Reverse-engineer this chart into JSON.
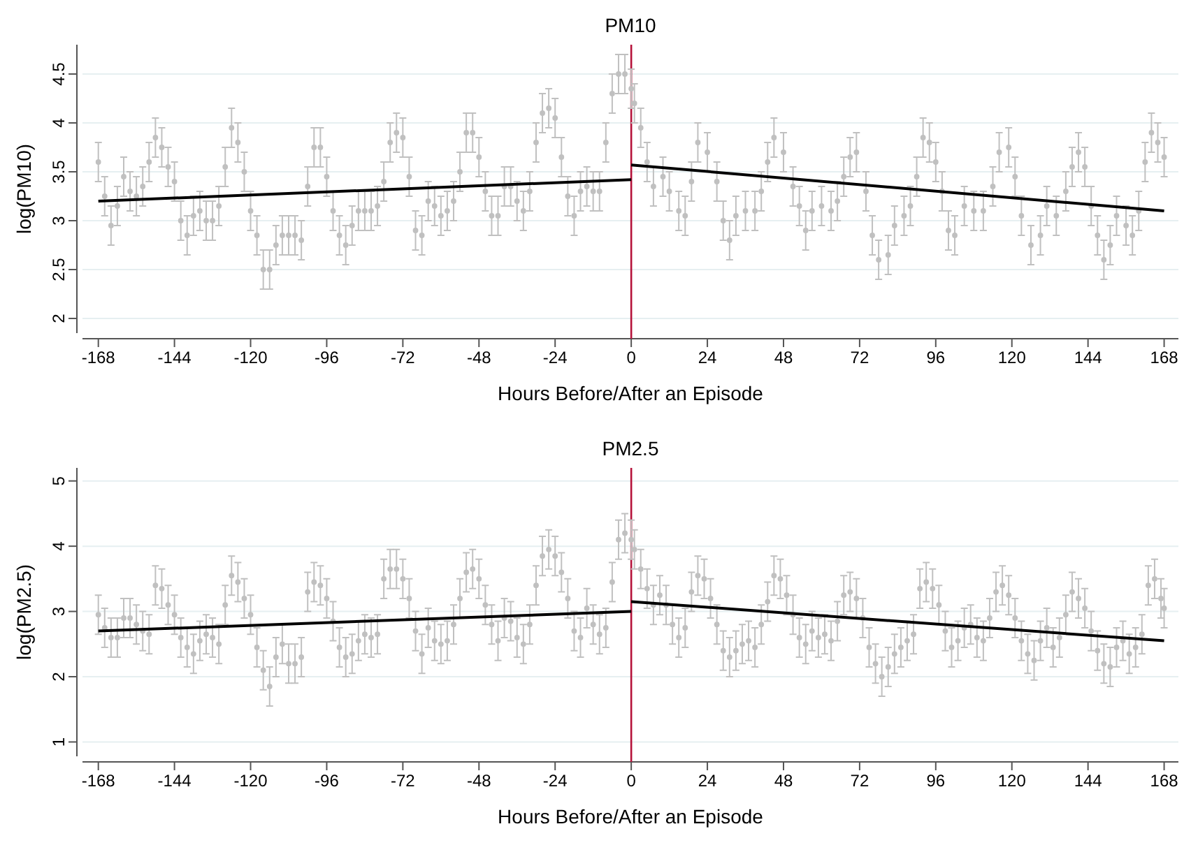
{
  "chart_data": [
    {
      "type": "scatter",
      "title": "PM10",
      "xlabel": "Hours Before/After an Episode",
      "ylabel": "log(PM10)",
      "xlim": [
        -173,
        172.5
      ],
      "xticks": [
        -168,
        -144,
        -120,
        -96,
        -72,
        -48,
        -24,
        0,
        24,
        48,
        72,
        96,
        120,
        144,
        168
      ],
      "ylim": [
        1.85,
        4.8
      ],
      "yticks": [
        2,
        2.5,
        3,
        3.5,
        4,
        4.5
      ],
      "grid": "y",
      "ref_lines": [
        {
          "axis": "x",
          "value": 0,
          "color": "#b5123a"
        }
      ],
      "series": [
        {
          "marker": "circle",
          "color": "#c0c0c0",
          "x": [
            -168,
            -166,
            -164,
            -162,
            -160,
            -158,
            -156,
            -154,
            -152,
            -150,
            -148,
            -146,
            -144,
            -142,
            -140,
            -138,
            -136,
            -134,
            -132,
            -130,
            -128,
            -126,
            -124,
            -122,
            -120,
            -118,
            -116,
            -114,
            -112,
            -110,
            -108,
            -106,
            -104,
            -102,
            -100,
            -98,
            -96,
            -94,
            -92,
            -90,
            -88,
            -86,
            -84,
            -82,
            -80,
            -78,
            -76,
            -74,
            -72,
            -70,
            -68,
            -66,
            -64,
            -62,
            -60,
            -58,
            -56,
            -54,
            -52,
            -50,
            -48,
            -46,
            -44,
            -42,
            -40,
            -38,
            -36,
            -34,
            -32,
            -30,
            -28,
            -26,
            -24,
            -22,
            -20,
            -18,
            -16,
            -14,
            -12,
            -10,
            -8,
            -6,
            -4,
            -2,
            0,
            1,
            3,
            5,
            7,
            10,
            12,
            15,
            17,
            19,
            21,
            24,
            27,
            29,
            31,
            33,
            36,
            39,
            41,
            43,
            45,
            48,
            51,
            53,
            55,
            57,
            60,
            63,
            65,
            67,
            69,
            71,
            74,
            76,
            78,
            81,
            83,
            86,
            88,
            90,
            92,
            94,
            96,
            98,
            100,
            102,
            105,
            108,
            111,
            114,
            116,
            119,
            121,
            123,
            126,
            129,
            131,
            134,
            137,
            139,
            141,
            143,
            145,
            147,
            149,
            151,
            153,
            156,
            158,
            160,
            162,
            164,
            166,
            168
          ],
          "values": [
            3.6,
            3.25,
            2.95,
            3.15,
            3.45,
            3.3,
            3.25,
            3.35,
            3.6,
            3.85,
            3.75,
            3.55,
            3.4,
            3.0,
            2.85,
            3.05,
            3.1,
            3.0,
            3.0,
            3.15,
            3.55,
            3.95,
            3.8,
            3.5,
            3.1,
            2.85,
            2.5,
            2.5,
            2.75,
            2.85,
            2.85,
            2.85,
            2.8,
            3.35,
            3.75,
            3.75,
            3.45,
            3.1,
            2.85,
            2.75,
            2.95,
            3.1,
            3.1,
            3.1,
            3.15,
            3.4,
            3.8,
            3.9,
            3.85,
            3.45,
            2.9,
            2.85,
            3.2,
            3.15,
            3.05,
            3.1,
            3.2,
            3.5,
            3.9,
            3.9,
            3.65,
            3.3,
            3.05,
            3.05,
            3.35,
            3.35,
            3.2,
            3.1,
            3.3,
            3.8,
            4.1,
            4.15,
            4.05,
            3.65,
            3.25,
            3.05,
            3.3,
            3.35,
            3.3,
            3.3,
            3.8,
            4.3,
            4.5,
            4.5,
            4.35,
            4.2,
            3.95,
            3.6,
            3.35,
            3.45,
            3.3,
            3.1,
            3.05,
            3.4,
            3.8,
            3.7,
            3.4,
            3.0,
            2.8,
            3.05,
            3.1,
            3.1,
            3.3,
            3.6,
            3.85,
            3.7,
            3.35,
            3.15,
            2.9,
            3.1,
            3.15,
            3.1,
            3.2,
            3.45,
            3.65,
            3.7,
            3.3,
            2.85,
            2.6,
            2.65,
            2.95,
            3.05,
            3.15,
            3.45,
            3.85,
            3.8,
            3.6,
            3.3,
            2.9,
            2.85,
            3.15,
            3.1,
            3.1,
            3.35,
            3.7,
            3.75,
            3.45,
            3.05,
            2.75,
            2.85,
            3.15,
            3.05,
            3.3,
            3.55,
            3.7,
            3.55,
            3.15,
            2.85,
            2.6,
            2.75,
            3.05,
            2.95,
            2.85,
            3.1,
            3.6,
            3.9,
            3.8,
            3.65
          ],
          "errors": [
            0.2,
            0.2,
            0.2,
            0.2,
            0.2,
            0.2,
            0.2,
            0.2,
            0.2,
            0.2,
            0.2,
            0.2,
            0.2,
            0.2,
            0.2,
            0.2,
            0.2,
            0.2,
            0.2,
            0.2,
            0.2,
            0.2,
            0.2,
            0.2,
            0.2,
            0.2,
            0.2,
            0.2,
            0.2,
            0.2,
            0.2,
            0.2,
            0.2,
            0.2,
            0.2,
            0.2,
            0.2,
            0.2,
            0.2,
            0.2,
            0.2,
            0.2,
            0.2,
            0.2,
            0.2,
            0.2,
            0.2,
            0.2,
            0.2,
            0.2,
            0.2,
            0.2,
            0.2,
            0.2,
            0.2,
            0.2,
            0.2,
            0.2,
            0.2,
            0.2,
            0.2,
            0.2,
            0.2,
            0.2,
            0.2,
            0.2,
            0.2,
            0.2,
            0.2,
            0.2,
            0.2,
            0.2,
            0.2,
            0.2,
            0.2,
            0.2,
            0.2,
            0.2,
            0.2,
            0.2,
            0.2,
            0.2,
            0.2,
            0.2,
            0.2,
            0.2,
            0.2,
            0.2,
            0.2,
            0.2,
            0.2,
            0.2,
            0.2,
            0.2,
            0.2,
            0.2,
            0.2,
            0.2,
            0.2,
            0.2,
            0.2,
            0.2,
            0.2,
            0.2,
            0.2,
            0.2,
            0.2,
            0.2,
            0.2,
            0.2,
            0.2,
            0.2,
            0.2,
            0.2,
            0.2,
            0.2,
            0.2,
            0.2,
            0.2,
            0.2,
            0.2,
            0.2,
            0.2,
            0.2,
            0.2,
            0.2,
            0.2,
            0.2,
            0.2,
            0.2,
            0.2,
            0.2,
            0.2,
            0.2,
            0.2,
            0.2,
            0.2,
            0.2,
            0.2,
            0.2,
            0.2,
            0.2,
            0.2,
            0.2,
            0.2,
            0.2,
            0.2,
            0.2,
            0.2,
            0.2,
            0.2,
            0.2,
            0.2,
            0.2,
            0.2,
            0.2,
            0.2,
            0.2
          ]
        },
        {
          "type": "line",
          "color": "#000000",
          "x": [
            -168,
            0
          ],
          "values": [
            3.2,
            3.42
          ]
        },
        {
          "type": "line",
          "color": "#000000",
          "x": [
            0,
            168
          ],
          "values": [
            3.57,
            3.1
          ]
        }
      ]
    },
    {
      "type": "scatter",
      "title": "PM2.5",
      "xlabel": "Hours Before/After an Episode",
      "ylabel": "log(PM2.5)",
      "xlim": [
        -173,
        172.5
      ],
      "xticks": [
        -168,
        -144,
        -120,
        -96,
        -72,
        -48,
        -24,
        0,
        24,
        48,
        72,
        96,
        120,
        144,
        168
      ],
      "ylim": [
        0.78,
        5.2
      ],
      "yticks": [
        1,
        2,
        3,
        4,
        5
      ],
      "grid": "y",
      "ref_lines": [
        {
          "axis": "x",
          "value": 0,
          "color": "#b5123a"
        }
      ],
      "series": [
        {
          "marker": "circle",
          "color": "#c0c0c0",
          "x": [
            -168,
            -166,
            -164,
            -162,
            -160,
            -158,
            -156,
            -154,
            -152,
            -150,
            -148,
            -146,
            -144,
            -142,
            -140,
            -138,
            -136,
            -134,
            -132,
            -130,
            -128,
            -126,
            -124,
            -122,
            -120,
            -118,
            -116,
            -114,
            -112,
            -110,
            -108,
            -106,
            -104,
            -102,
            -100,
            -98,
            -96,
            -94,
            -92,
            -90,
            -88,
            -86,
            -84,
            -82,
            -80,
            -78,
            -76,
            -74,
            -72,
            -70,
            -68,
            -66,
            -64,
            -62,
            -60,
            -58,
            -56,
            -54,
            -52,
            -50,
            -48,
            -46,
            -44,
            -42,
            -40,
            -38,
            -36,
            -34,
            -32,
            -30,
            -28,
            -26,
            -24,
            -22,
            -20,
            -18,
            -16,
            -14,
            -12,
            -10,
            -8,
            -6,
            -4,
            -2,
            0,
            1,
            3,
            5,
            7,
            9,
            11,
            13,
            15,
            17,
            19,
            21,
            23,
            25,
            27,
            29,
            31,
            33,
            35,
            37,
            39,
            41,
            43,
            45,
            47,
            49,
            51,
            53,
            55,
            57,
            59,
            61,
            63,
            65,
            67,
            69,
            71,
            73,
            75,
            77,
            79,
            81,
            83,
            85,
            87,
            89,
            91,
            93,
            95,
            97,
            99,
            101,
            103,
            105,
            107,
            109,
            111,
            113,
            115,
            117,
            119,
            121,
            123,
            125,
            127,
            129,
            131,
            133,
            135,
            137,
            139,
            141,
            143,
            145,
            147,
            149,
            151,
            153,
            155,
            157,
            159,
            161,
            163,
            165,
            167,
            168
          ],
          "values": [
            2.95,
            2.75,
            2.6,
            2.6,
            2.9,
            2.9,
            2.8,
            2.7,
            2.65,
            3.4,
            3.35,
            3.1,
            2.95,
            2.6,
            2.45,
            2.35,
            2.55,
            2.65,
            2.6,
            2.5,
            3.1,
            3.55,
            3.45,
            3.2,
            2.95,
            2.45,
            2.1,
            1.85,
            2.3,
            2.5,
            2.2,
            2.2,
            2.3,
            3.3,
            3.45,
            3.4,
            3.2,
            2.85,
            2.45,
            2.3,
            2.35,
            2.55,
            2.65,
            2.6,
            2.65,
            3.5,
            3.65,
            3.65,
            3.5,
            3.2,
            2.7,
            2.35,
            2.75,
            2.55,
            2.5,
            2.55,
            2.8,
            3.2,
            3.6,
            3.65,
            3.5,
            3.1,
            2.8,
            2.55,
            2.9,
            2.85,
            2.6,
            2.5,
            2.8,
            3.4,
            3.85,
            3.95,
            3.85,
            3.6,
            3.2,
            2.7,
            2.6,
            3.05,
            2.8,
            2.65,
            2.75,
            3.45,
            4.1,
            4.2,
            4.1,
            3.95,
            3.65,
            3.35,
            3.1,
            3.25,
            3.1,
            2.8,
            2.6,
            2.75,
            3.3,
            3.55,
            3.5,
            3.2,
            2.8,
            2.4,
            2.3,
            2.4,
            2.5,
            2.55,
            2.45,
            2.8,
            3.15,
            3.55,
            3.5,
            3.25,
            2.95,
            2.6,
            2.5,
            2.7,
            2.6,
            2.65,
            2.55,
            2.85,
            3.25,
            3.3,
            3.2,
            2.9,
            2.45,
            2.2,
            2.0,
            2.15,
            2.35,
            2.45,
            2.55,
            2.65,
            3.35,
            3.45,
            3.35,
            3.1,
            2.7,
            2.45,
            2.55,
            2.75,
            2.8,
            2.6,
            2.55,
            2.9,
            3.3,
            3.4,
            3.25,
            2.9,
            2.55,
            2.35,
            2.25,
            2.55,
            2.75,
            2.45,
            2.6,
            2.95,
            3.3,
            3.2,
            3.05,
            2.7,
            2.4,
            2.2,
            2.15,
            2.45,
            2.55,
            2.35,
            2.45,
            2.65,
            3.4,
            3.5,
            3.2,
            3.05
          ],
          "errors": [
            0.3,
            0.3,
            0.3,
            0.3,
            0.3,
            0.3,
            0.3,
            0.3,
            0.3,
            0.3,
            0.3,
            0.3,
            0.3,
            0.3,
            0.3,
            0.3,
            0.3,
            0.3,
            0.3,
            0.3,
            0.3,
            0.3,
            0.3,
            0.3,
            0.3,
            0.3,
            0.3,
            0.3,
            0.3,
            0.3,
            0.3,
            0.3,
            0.3,
            0.3,
            0.3,
            0.3,
            0.3,
            0.3,
            0.3,
            0.3,
            0.3,
            0.3,
            0.3,
            0.3,
            0.3,
            0.3,
            0.3,
            0.3,
            0.3,
            0.3,
            0.3,
            0.3,
            0.3,
            0.3,
            0.3,
            0.3,
            0.3,
            0.3,
            0.3,
            0.3,
            0.3,
            0.3,
            0.3,
            0.3,
            0.3,
            0.3,
            0.3,
            0.3,
            0.3,
            0.3,
            0.3,
            0.3,
            0.3,
            0.3,
            0.3,
            0.3,
            0.3,
            0.3,
            0.3,
            0.3,
            0.3,
            0.3,
            0.3,
            0.3,
            0.3,
            0.3,
            0.3,
            0.3,
            0.3,
            0.3,
            0.3,
            0.3,
            0.3,
            0.3,
            0.3,
            0.3,
            0.3,
            0.3,
            0.3,
            0.3,
            0.3,
            0.3,
            0.3,
            0.3,
            0.3,
            0.3,
            0.3,
            0.3,
            0.3,
            0.3,
            0.3,
            0.3,
            0.3,
            0.3,
            0.3,
            0.3,
            0.3,
            0.3,
            0.3,
            0.3,
            0.3,
            0.3,
            0.3,
            0.3,
            0.3,
            0.3,
            0.3,
            0.3,
            0.3,
            0.3,
            0.3,
            0.3,
            0.3,
            0.3,
            0.3,
            0.3,
            0.3,
            0.3,
            0.3,
            0.3,
            0.3,
            0.3,
            0.3,
            0.3,
            0.3,
            0.3,
            0.3,
            0.3,
            0.3,
            0.3,
            0.3,
            0.3,
            0.3,
            0.3,
            0.3,
            0.3,
            0.3,
            0.3,
            0.3,
            0.3,
            0.3,
            0.3,
            0.3,
            0.3,
            0.3,
            0.3,
            0.3,
            0.3,
            0.3,
            0.3
          ]
        },
        {
          "type": "line",
          "color": "#000000",
          "x": [
            -168,
            0
          ],
          "values": [
            2.7,
            3.0
          ]
        },
        {
          "type": "line",
          "color": "#000000",
          "x": [
            0,
            168
          ],
          "values": [
            3.15,
            2.55
          ]
        }
      ]
    }
  ]
}
